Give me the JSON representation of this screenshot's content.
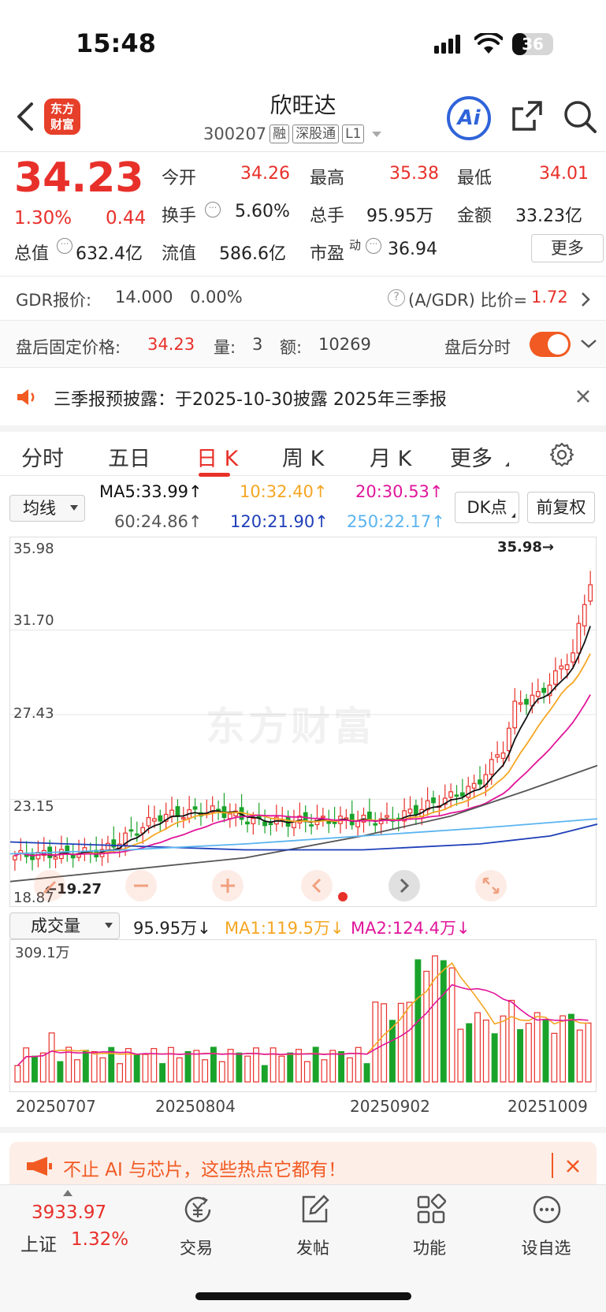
{
  "status": {
    "time": "15:48",
    "battery": "36",
    "battery_level": 36
  },
  "header": {
    "logo": "东方\n财富",
    "title": "欣旺达",
    "code": "300207",
    "tags": [
      "融",
      "深股通",
      "L1"
    ]
  },
  "quote": {
    "price": "34.23",
    "pct": "1.30%",
    "change": "0.44",
    "open_label": "今开",
    "open": "34.26",
    "high_label": "最高",
    "high": "35.38",
    "low_label": "最低",
    "low": "34.01",
    "turnover_label": "换手",
    "turnover": "5.60%",
    "volume_label": "总手",
    "volume": "95.95万",
    "amount_label": "金额",
    "amount": "33.23亿",
    "mktcap_label": "总值",
    "mktcap": "632.4亿",
    "float_label": "流值",
    "float": "586.6亿",
    "pe_label": "市盈",
    "pe_sup": "动",
    "pe": "36.94",
    "more": "更多"
  },
  "gdr": {
    "label": "GDR报价:",
    "price": "14.000",
    "pct": "0.00%",
    "ratio_label": "(A/GDR) 比价=",
    "ratio": "1.72"
  },
  "afterhours": {
    "label": "盘后固定价格:",
    "price": "34.23",
    "qty_label": "量:",
    "qty": "3",
    "amt_label": "额:",
    "amt": "10269",
    "toggle_label": "盘后分时"
  },
  "notice": {
    "text": "三季报预披露：于2025-10-30披露 2025年三季报"
  },
  "tabs": [
    "分时",
    "五日",
    "日 K",
    "周 K",
    "月 K",
    "更多"
  ],
  "ma_bar": {
    "select": "均线",
    "ma5": "MA5:33.99↑",
    "ma10": "10:32.40↑",
    "ma20": "20:30.53↑",
    "ma60": "60:24.86↑",
    "ma120": "120:21.90↑",
    "ma250": "250:22.17↑",
    "dk": "DK点",
    "adj": "前复权"
  },
  "kline": {
    "y_labels": [
      "35.98",
      "31.70",
      "27.43",
      "23.15",
      "18.87"
    ],
    "max_label": "35.98→",
    "min_label": "←19.27",
    "watermark": "东方财富",
    "colors": {
      "up": "#e8302a",
      "down": "#1aa32a",
      "ma5": "#111111",
      "ma10": "#f5a623",
      "ma20": "#e0169a",
      "ma60": "#555555",
      "ma120": "#1f3fb8",
      "ma250": "#5ab4f0"
    }
  },
  "volbar": {
    "select": "成交量",
    "vol": "95.95万↓",
    "ma1": "MA1:119.5万↓",
    "ma2": "MA2:124.4万↓",
    "ymax": "309.1万",
    "dates": [
      "20250707",
      "20250804",
      "20250902",
      "20251009"
    ]
  },
  "banner": {
    "text": "不止 AI 与芯片，这些热点它都有！"
  },
  "bottom": {
    "index_value": "3933.97",
    "index_name": "上证",
    "index_pct": "1.32%",
    "items": [
      "交易",
      "发帖",
      "功能",
      "设自选"
    ]
  }
}
